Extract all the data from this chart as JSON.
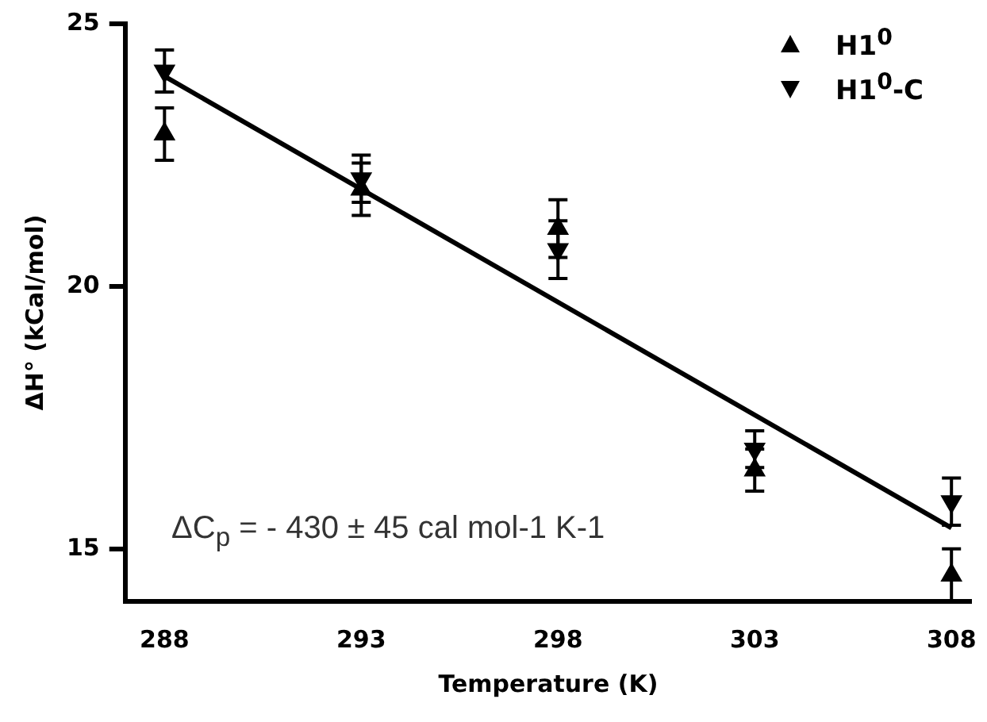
{
  "chart_data": {
    "type": "scatter",
    "xlabel": "Temperature (K)",
    "ylabel": "ΔH° (kCal/mol)",
    "x": [
      288,
      293,
      298,
      303,
      308
    ],
    "series": [
      {
        "name": "H1$^{0}$",
        "color": "#000000",
        "type": "scatter",
        "marker": "triangle",
        "values": [
          22.9,
          21.85,
          21.1,
          16.5,
          14.5
        ],
        "errors": [
          0.5,
          0.5,
          0.55,
          0.4,
          0.5
        ]
      },
      {
        "name": "H1$^{0}$-C",
        "color": "#000000",
        "type": "scatter",
        "marker": "triangle",
        "values": [
          24.1,
          22.05,
          20.7,
          16.9,
          15.9
        ],
        "errors": [
          0.4,
          0.45,
          0.55,
          0.35,
          0.45
        ]
      },
      {
        "type": "line",
        "color": "#000000",
        "x": [
          288,
          308
        ],
        "values": [
          24.0,
          15.4
        ],
        "marker": "none"
      }
    ],
    "xlim": [
      287,
      308.5
    ],
    "xticks": [
      288,
      293,
      298,
      303,
      308
    ],
    "ylim": [
      14,
      25
    ],
    "yticks": [
      15,
      20,
      25
    ],
    "grid": false,
    "legend": "top right",
    "annotations": [
      "ΔC$_{p}$ = - 430 ± 45 cal mol-1 K-1"
    ]
  }
}
